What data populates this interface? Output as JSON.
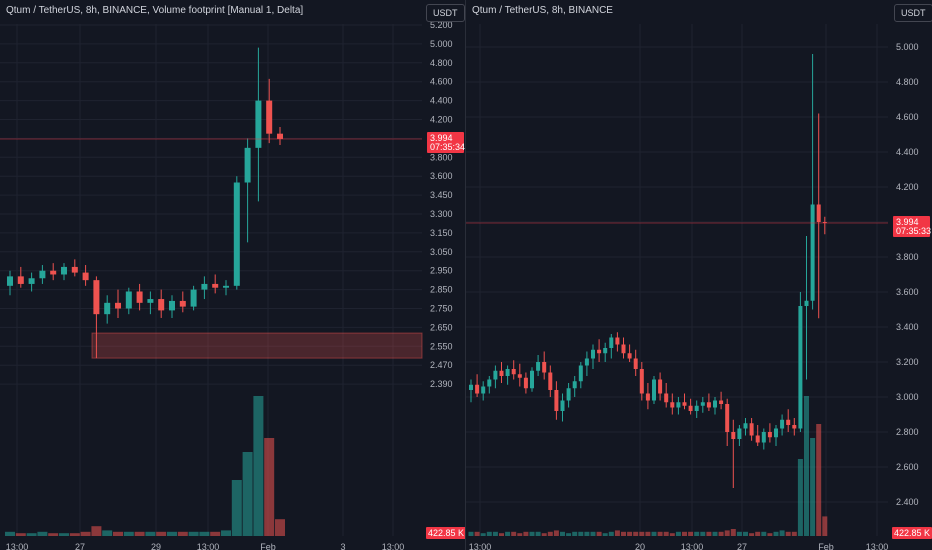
{
  "colors": {
    "background": "#131722",
    "grid": "#1f2330",
    "up": "#26a69a",
    "down": "#ef5350",
    "text": "#b2b5be",
    "price_tag": "#f23645"
  },
  "left_panel": {
    "title": "Qtum / TetherUS, 8h, BINANCE, Volume footprint [Manual 1, Delta]",
    "currency_button": "USDT",
    "last_price": "3.994",
    "countdown": "07:35:34",
    "volume_label": "422.85 K",
    "y_ticks": [
      "5.200",
      "5.000",
      "4.800",
      "4.600",
      "4.400",
      "4.200",
      "4.000",
      "3.800",
      "3.600",
      "3.450",
      "3.300",
      "3.150",
      "3.050",
      "2.950",
      "2.850",
      "2.750",
      "2.650",
      "2.550",
      "2.470",
      "2.390"
    ],
    "x_ticks": [
      "13:00",
      "27",
      "29",
      "13:00",
      "Feb",
      "3",
      "13:00"
    ]
  },
  "right_panel": {
    "title": "Qtum / TetherUS, 8h, BINANCE",
    "currency_button": "USDT",
    "last_price": "3.994",
    "countdown": "07:35:33",
    "volume_label": "422.85 K",
    "y_ticks": [
      "5.000",
      "4.800",
      "4.600",
      "4.400",
      "4.200",
      "4.000",
      "3.800",
      "3.600",
      "3.400",
      "3.200",
      "3.000",
      "2.800",
      "2.600",
      "2.400"
    ],
    "x_ticks": [
      "13:00",
      "20",
      "13:00",
      "27",
      "Feb",
      "13:00"
    ]
  },
  "chart_data": [
    {
      "type": "candlestick",
      "title": "Qtum / TetherUS, 8h, BINANCE, Volume footprint [Manual 1, Delta]",
      "x_ticks": [
        "13:00",
        "27",
        "29",
        "13:00",
        "Feb",
        "3",
        "13:00"
      ],
      "y_ticks": [
        5.2,
        5.0,
        4.8,
        4.6,
        4.4,
        4.2,
        4.0,
        3.8,
        3.6,
        3.45,
        3.3,
        3.15,
        3.05,
        2.95,
        2.85,
        2.75,
        2.65,
        2.55,
        2.47,
        2.39
      ],
      "last_price": 3.994,
      "candles": [
        {
          "o": 2.87,
          "h": 2.95,
          "l": 2.82,
          "c": 2.92
        },
        {
          "o": 2.92,
          "h": 2.97,
          "l": 2.86,
          "c": 2.88
        },
        {
          "o": 2.88,
          "h": 2.94,
          "l": 2.84,
          "c": 2.91
        },
        {
          "o": 2.91,
          "h": 2.98,
          "l": 2.88,
          "c": 2.95
        },
        {
          "o": 2.95,
          "h": 2.99,
          "l": 2.9,
          "c": 2.93
        },
        {
          "o": 2.93,
          "h": 2.99,
          "l": 2.9,
          "c": 2.97
        },
        {
          "o": 2.97,
          "h": 3.01,
          "l": 2.92,
          "c": 2.94
        },
        {
          "o": 2.94,
          "h": 2.98,
          "l": 2.87,
          "c": 2.9
        },
        {
          "o": 2.9,
          "h": 2.92,
          "l": 2.5,
          "c": 2.72
        },
        {
          "o": 2.72,
          "h": 2.82,
          "l": 2.67,
          "c": 2.78
        },
        {
          "o": 2.78,
          "h": 2.85,
          "l": 2.7,
          "c": 2.75
        },
        {
          "o": 2.75,
          "h": 2.86,
          "l": 2.72,
          "c": 2.84
        },
        {
          "o": 2.84,
          "h": 2.88,
          "l": 2.74,
          "c": 2.78
        },
        {
          "o": 2.78,
          "h": 2.84,
          "l": 2.72,
          "c": 2.8
        },
        {
          "o": 2.8,
          "h": 2.85,
          "l": 2.7,
          "c": 2.74
        },
        {
          "o": 2.74,
          "h": 2.82,
          "l": 2.7,
          "c": 2.79
        },
        {
          "o": 2.79,
          "h": 2.84,
          "l": 2.73,
          "c": 2.76
        },
        {
          "o": 2.76,
          "h": 2.87,
          "l": 2.74,
          "c": 2.85
        },
        {
          "o": 2.85,
          "h": 2.92,
          "l": 2.8,
          "c": 2.88
        },
        {
          "o": 2.88,
          "h": 2.93,
          "l": 2.83,
          "c": 2.86
        },
        {
          "o": 2.86,
          "h": 2.9,
          "l": 2.82,
          "c": 2.87
        },
        {
          "o": 2.87,
          "h": 3.6,
          "l": 2.85,
          "c": 3.55
        },
        {
          "o": 3.55,
          "h": 4.0,
          "l": 3.1,
          "c": 3.9
        },
        {
          "o": 3.9,
          "h": 4.96,
          "l": 3.4,
          "c": 4.4
        },
        {
          "o": 4.4,
          "h": 4.63,
          "l": 3.95,
          "c": 4.05
        },
        {
          "o": 4.05,
          "h": 4.12,
          "l": 3.93,
          "c": 3.994
        }
      ],
      "volume": [
        3,
        2,
        2,
        3,
        2,
        2,
        2,
        3,
        7,
        4,
        3,
        3,
        3,
        3,
        3,
        3,
        3,
        3,
        3,
        3,
        4,
        40,
        60,
        100,
        70,
        12
      ],
      "value_area": {
        "low": 2.5,
        "high": 2.62
      }
    },
    {
      "type": "candlestick",
      "title": "Qtum / TetherUS, 8h, BINANCE",
      "x_ticks": [
        "13:00",
        "20",
        "13:00",
        "27",
        "Feb",
        "13:00"
      ],
      "y_ticks": [
        5.0,
        4.8,
        4.6,
        4.4,
        4.2,
        4.0,
        3.8,
        3.6,
        3.4,
        3.2,
        3.0,
        2.8,
        2.6,
        2.4
      ],
      "last_price": 3.994,
      "candles": [
        {
          "o": 3.04,
          "h": 3.1,
          "l": 2.97,
          "c": 3.07
        },
        {
          "o": 3.07,
          "h": 3.13,
          "l": 3.0,
          "c": 3.02
        },
        {
          "o": 3.02,
          "h": 3.09,
          "l": 2.98,
          "c": 3.06
        },
        {
          "o": 3.06,
          "h": 3.12,
          "l": 3.02,
          "c": 3.1
        },
        {
          "o": 3.1,
          "h": 3.18,
          "l": 3.05,
          "c": 3.15
        },
        {
          "o": 3.15,
          "h": 3.2,
          "l": 3.08,
          "c": 3.12
        },
        {
          "o": 3.12,
          "h": 3.18,
          "l": 3.07,
          "c": 3.16
        },
        {
          "o": 3.16,
          "h": 3.21,
          "l": 3.1,
          "c": 3.13
        },
        {
          "o": 3.13,
          "h": 3.19,
          "l": 3.06,
          "c": 3.11
        },
        {
          "o": 3.11,
          "h": 3.14,
          "l": 3.02,
          "c": 3.05
        },
        {
          "o": 3.05,
          "h": 3.17,
          "l": 3.03,
          "c": 3.15
        },
        {
          "o": 3.15,
          "h": 3.24,
          "l": 3.12,
          "c": 3.2
        },
        {
          "o": 3.2,
          "h": 3.26,
          "l": 3.1,
          "c": 3.14
        },
        {
          "o": 3.14,
          "h": 3.18,
          "l": 3.0,
          "c": 3.04
        },
        {
          "o": 3.04,
          "h": 3.09,
          "l": 2.87,
          "c": 2.92
        },
        {
          "o": 2.92,
          "h": 3.02,
          "l": 2.86,
          "c": 2.98
        },
        {
          "o": 2.98,
          "h": 3.08,
          "l": 2.94,
          "c": 3.05
        },
        {
          "o": 3.05,
          "h": 3.12,
          "l": 3.0,
          "c": 3.09
        },
        {
          "o": 3.09,
          "h": 3.2,
          "l": 3.05,
          "c": 3.18
        },
        {
          "o": 3.18,
          "h": 3.26,
          "l": 3.12,
          "c": 3.22
        },
        {
          "o": 3.22,
          "h": 3.3,
          "l": 3.16,
          "c": 3.27
        },
        {
          "o": 3.27,
          "h": 3.33,
          "l": 3.2,
          "c": 3.25
        },
        {
          "o": 3.25,
          "h": 3.31,
          "l": 3.2,
          "c": 3.28
        },
        {
          "o": 3.28,
          "h": 3.36,
          "l": 3.22,
          "c": 3.34
        },
        {
          "o": 3.34,
          "h": 3.37,
          "l": 3.26,
          "c": 3.3
        },
        {
          "o": 3.3,
          "h": 3.34,
          "l": 3.22,
          "c": 3.25
        },
        {
          "o": 3.25,
          "h": 3.3,
          "l": 3.2,
          "c": 3.22
        },
        {
          "o": 3.22,
          "h": 3.27,
          "l": 3.12,
          "c": 3.16
        },
        {
          "o": 3.16,
          "h": 3.2,
          "l": 2.98,
          "c": 3.02
        },
        {
          "o": 3.02,
          "h": 3.08,
          "l": 2.93,
          "c": 2.98
        },
        {
          "o": 2.98,
          "h": 3.12,
          "l": 2.96,
          "c": 3.1
        },
        {
          "o": 3.1,
          "h": 3.14,
          "l": 2.98,
          "c": 3.02
        },
        {
          "o": 3.02,
          "h": 3.08,
          "l": 2.94,
          "c": 2.97
        },
        {
          "o": 2.97,
          "h": 3.02,
          "l": 2.9,
          "c": 2.94
        },
        {
          "o": 2.94,
          "h": 3.0,
          "l": 2.9,
          "c": 2.97
        },
        {
          "o": 2.97,
          "h": 3.02,
          "l": 2.93,
          "c": 2.95
        },
        {
          "o": 2.95,
          "h": 2.99,
          "l": 2.9,
          "c": 2.92
        },
        {
          "o": 2.92,
          "h": 2.98,
          "l": 2.88,
          "c": 2.95
        },
        {
          "o": 2.95,
          "h": 3.0,
          "l": 2.91,
          "c": 2.97
        },
        {
          "o": 2.97,
          "h": 3.02,
          "l": 2.92,
          "c": 2.94
        },
        {
          "o": 2.94,
          "h": 3.0,
          "l": 2.9,
          "c": 2.98
        },
        {
          "o": 2.98,
          "h": 3.03,
          "l": 2.93,
          "c": 2.96
        },
        {
          "o": 2.96,
          "h": 2.99,
          "l": 2.72,
          "c": 2.8
        },
        {
          "o": 2.8,
          "h": 2.87,
          "l": 2.48,
          "c": 2.76
        },
        {
          "o": 2.76,
          "h": 2.84,
          "l": 2.72,
          "c": 2.82
        },
        {
          "o": 2.82,
          "h": 2.88,
          "l": 2.78,
          "c": 2.85
        },
        {
          "o": 2.85,
          "h": 2.88,
          "l": 2.75,
          "c": 2.78
        },
        {
          "o": 2.78,
          "h": 2.84,
          "l": 2.72,
          "c": 2.74
        },
        {
          "o": 2.74,
          "h": 2.82,
          "l": 2.7,
          "c": 2.8
        },
        {
          "o": 2.8,
          "h": 2.85,
          "l": 2.74,
          "c": 2.77
        },
        {
          "o": 2.77,
          "h": 2.84,
          "l": 2.72,
          "c": 2.82
        },
        {
          "o": 2.82,
          "h": 2.9,
          "l": 2.78,
          "c": 2.87
        },
        {
          "o": 2.87,
          "h": 2.93,
          "l": 2.8,
          "c": 2.84
        },
        {
          "o": 2.84,
          "h": 2.88,
          "l": 2.78,
          "c": 2.82
        },
        {
          "o": 2.82,
          "h": 3.6,
          "l": 2.8,
          "c": 3.52
        },
        {
          "o": 3.52,
          "h": 3.92,
          "l": 3.1,
          "c": 3.55
        },
        {
          "o": 3.55,
          "h": 4.96,
          "l": 3.5,
          "c": 4.1
        },
        {
          "o": 4.1,
          "h": 4.62,
          "l": 3.45,
          "c": 4.0
        },
        {
          "o": 4.0,
          "h": 4.03,
          "l": 3.93,
          "c": 3.994
        }
      ],
      "volume": [
        3,
        3,
        2,
        3,
        3,
        2,
        3,
        3,
        2,
        3,
        3,
        3,
        2,
        3,
        4,
        3,
        2,
        3,
        3,
        3,
        3,
        3,
        2,
        3,
        4,
        3,
        3,
        3,
        3,
        3,
        3,
        3,
        3,
        2,
        3,
        3,
        3,
        3,
        3,
        3,
        3,
        3,
        4,
        5,
        3,
        3,
        2,
        3,
        3,
        2,
        3,
        4,
        3,
        3,
        55,
        100,
        70,
        80,
        14
      ]
    }
  ]
}
